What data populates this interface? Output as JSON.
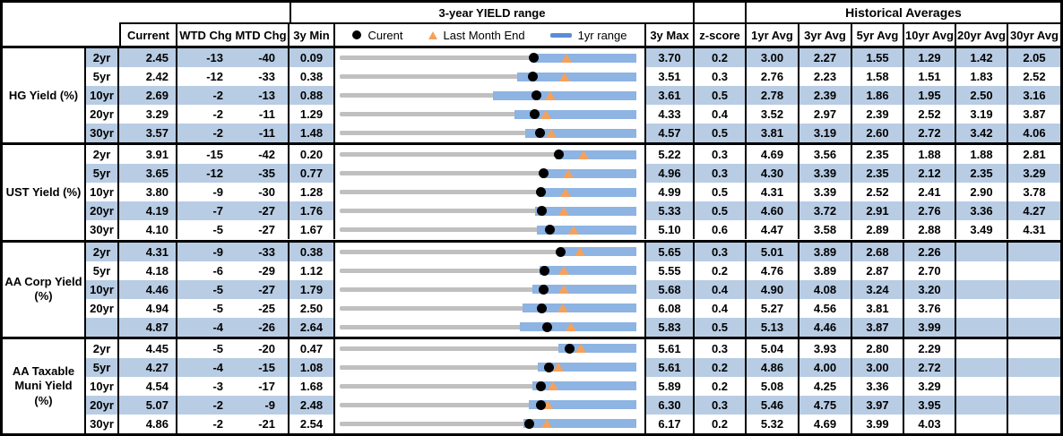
{
  "header": {
    "range_title": "3-year YIELD range",
    "hist_title": "Historical Averages",
    "col_current": "Current",
    "col_wtd": "WTD Chg",
    "col_mtd": "MTD Chg",
    "col_min": "3y Min",
    "col_max": "3y Max",
    "col_z": "z-score",
    "avg_cols": [
      "1yr Avg",
      "3yr Avg",
      "5yr Avg",
      "10yr Avg",
      "20yr Avg",
      "30yr Avg"
    ],
    "legend": {
      "current": "Curent",
      "last_month": "Last Month End",
      "range": "1yr range"
    }
  },
  "colors": {
    "band": "#b8cce4",
    "bar": "#8db4e2",
    "track": "#c0c0c0",
    "triangle": "#f5a15c",
    "dot": "#000000",
    "legend_dash": "#5b8bd5"
  },
  "chart_data": {
    "type": "bullet-range table",
    "title": "3-year YIELD range",
    "legend": [
      "Curent = black dot",
      "Last Month End = orange triangle",
      "1yr range = blue bar"
    ],
    "note": "Each row's gray track spans 3y Min to 3y Max; blue bar spans the 1yr range (yr1_low to yr1_high); dot = current; triangle = last month end.",
    "sections": [
      {
        "label": "HG Yield (%)",
        "rows": [
          {
            "tenor": "2yr",
            "current": "2.45",
            "wtd_chg": "-13",
            "mtd_chg": "-40",
            "min_3y": "0.09",
            "max_3y": "3.70",
            "z_score": "0.2",
            "avgs": [
              "3.00",
              "2.27",
              "1.55",
              "1.29",
              "1.42",
              "2.05"
            ],
            "last_month_end": 2.85,
            "yr1_low": 2.45,
            "yr1_high": 3.7
          },
          {
            "tenor": "5yr",
            "current": "2.42",
            "wtd_chg": "-12",
            "mtd_chg": "-33",
            "min_3y": "0.38",
            "max_3y": "3.51",
            "z_score": "0.3",
            "avgs": [
              "2.76",
              "2.23",
              "1.58",
              "1.51",
              "1.83",
              "2.52"
            ],
            "last_month_end": 2.75,
            "yr1_low": 2.25,
            "yr1_high": 3.51
          },
          {
            "tenor": "10yr",
            "current": "2.69",
            "wtd_chg": "-2",
            "mtd_chg": "-13",
            "min_3y": "0.88",
            "max_3y": "3.61",
            "z_score": "0.5",
            "avgs": [
              "2.78",
              "2.39",
              "1.86",
              "1.95",
              "2.50",
              "3.16"
            ],
            "last_month_end": 2.82,
            "yr1_low": 2.29,
            "yr1_high": 3.61
          },
          {
            "tenor": "20yr",
            "current": "3.29",
            "wtd_chg": "-2",
            "mtd_chg": "-11",
            "min_3y": "1.29",
            "max_3y": "4.33",
            "z_score": "0.4",
            "avgs": [
              "3.52",
              "2.97",
              "2.39",
              "2.52",
              "3.19",
              "3.87"
            ],
            "last_month_end": 3.4,
            "yr1_low": 3.08,
            "yr1_high": 4.33
          },
          {
            "tenor": "30yr",
            "current": "3.57",
            "wtd_chg": "-2",
            "mtd_chg": "-11",
            "min_3y": "1.48",
            "max_3y": "4.57",
            "z_score": "0.5",
            "avgs": [
              "3.81",
              "3.19",
              "2.60",
              "2.72",
              "3.42",
              "4.06"
            ],
            "last_month_end": 3.68,
            "yr1_low": 3.41,
            "yr1_high": 4.57
          }
        ]
      },
      {
        "label": "UST Yield (%)",
        "rows": [
          {
            "tenor": "2yr",
            "current": "3.91",
            "wtd_chg": "-15",
            "mtd_chg": "-42",
            "min_3y": "0.20",
            "max_3y": "5.22",
            "z_score": "0.3",
            "avgs": [
              "4.69",
              "3.56",
              "2.35",
              "1.88",
              "1.88",
              "2.81"
            ],
            "last_month_end": 4.33,
            "yr1_low": 3.85,
            "yr1_high": 5.22
          },
          {
            "tenor": "5yr",
            "current": "3.65",
            "wtd_chg": "-12",
            "mtd_chg": "-35",
            "min_3y": "0.77",
            "max_3y": "4.96",
            "z_score": "0.3",
            "avgs": [
              "4.30",
              "3.39",
              "2.35",
              "2.12",
              "2.35",
              "3.29"
            ],
            "last_month_end": 4.0,
            "yr1_low": 3.62,
            "yr1_high": 4.96
          },
          {
            "tenor": "10yr",
            "current": "3.80",
            "wtd_chg": "-9",
            "mtd_chg": "-30",
            "min_3y": "1.28",
            "max_3y": "4.99",
            "z_score": "0.5",
            "avgs": [
              "4.31",
              "3.39",
              "2.52",
              "2.41",
              "2.90",
              "3.78"
            ],
            "last_month_end": 4.1,
            "yr1_low": 3.77,
            "yr1_high": 4.99
          },
          {
            "tenor": "20yr",
            "current": "4.19",
            "wtd_chg": "-7",
            "mtd_chg": "-27",
            "min_3y": "1.76",
            "max_3y": "5.33",
            "z_score": "0.5",
            "avgs": [
              "4.60",
              "3.72",
              "2.91",
              "2.76",
              "3.36",
              "4.27"
            ],
            "last_month_end": 4.46,
            "yr1_low": 4.11,
            "yr1_high": 5.33
          },
          {
            "tenor": "30yr",
            "current": "4.10",
            "wtd_chg": "-5",
            "mtd_chg": "-27",
            "min_3y": "1.67",
            "max_3y": "5.10",
            "z_score": "0.6",
            "avgs": [
              "4.47",
              "3.58",
              "2.89",
              "2.88",
              "3.49",
              "4.31"
            ],
            "last_month_end": 4.37,
            "yr1_low": 3.95,
            "yr1_high": 5.1
          }
        ]
      },
      {
        "label": "AA Corp Yield (%)",
        "rows": [
          {
            "tenor": "2yr",
            "current": "4.31",
            "wtd_chg": "-9",
            "mtd_chg": "-33",
            "min_3y": "0.38",
            "max_3y": "5.65",
            "z_score": "0.3",
            "avgs": [
              "5.01",
              "3.89",
              "2.68",
              "2.26",
              "",
              ""
            ],
            "last_month_end": 4.64,
            "yr1_low": 4.31,
            "yr1_high": 5.65
          },
          {
            "tenor": "5yr",
            "current": "4.18",
            "wtd_chg": "-6",
            "mtd_chg": "-29",
            "min_3y": "1.12",
            "max_3y": "5.55",
            "z_score": "0.2",
            "avgs": [
              "4.76",
              "3.89",
              "2.87",
              "2.70",
              "",
              ""
            ],
            "last_month_end": 4.47,
            "yr1_low": 4.1,
            "yr1_high": 5.55
          },
          {
            "tenor": "10yr",
            "current": "4.46",
            "wtd_chg": "-5",
            "mtd_chg": "-27",
            "min_3y": "1.79",
            "max_3y": "5.68",
            "z_score": "0.4",
            "avgs": [
              "4.90",
              "4.08",
              "3.24",
              "3.20",
              "",
              ""
            ],
            "last_month_end": 4.73,
            "yr1_low": 4.32,
            "yr1_high": 5.68
          },
          {
            "tenor": "20yr",
            "current": "4.94",
            "wtd_chg": "-5",
            "mtd_chg": "-25",
            "min_3y": "2.50",
            "max_3y": "6.08",
            "z_score": "0.4",
            "avgs": [
              "5.27",
              "4.56",
              "3.81",
              "3.76",
              "",
              ""
            ],
            "last_month_end": 5.19,
            "yr1_low": 4.71,
            "yr1_high": 6.08
          },
          {
            "tenor": "",
            "current": "4.87",
            "wtd_chg": "-4",
            "mtd_chg": "-26",
            "min_3y": "2.64",
            "max_3y": "5.83",
            "z_score": "0.5",
            "avgs": [
              "5.13",
              "4.46",
              "3.87",
              "3.99",
              "",
              ""
            ],
            "last_month_end": 5.13,
            "yr1_low": 4.58,
            "yr1_high": 5.83
          }
        ]
      },
      {
        "label": "AA Taxable Muni Yield (%)",
        "rows": [
          {
            "tenor": "2yr",
            "current": "4.45",
            "wtd_chg": "-5",
            "mtd_chg": "-20",
            "min_3y": "0.47",
            "max_3y": "5.61",
            "z_score": "0.3",
            "avgs": [
              "5.04",
              "3.93",
              "2.80",
              "2.29",
              "",
              ""
            ],
            "last_month_end": 4.65,
            "yr1_low": 4.26,
            "yr1_high": 5.61
          },
          {
            "tenor": "5yr",
            "current": "4.27",
            "wtd_chg": "-4",
            "mtd_chg": "-15",
            "min_3y": "1.08",
            "max_3y": "5.61",
            "z_score": "0.2",
            "avgs": [
              "4.86",
              "4.00",
              "3.00",
              "2.72",
              "",
              ""
            ],
            "last_month_end": 4.42,
            "yr1_low": 4.11,
            "yr1_high": 5.61
          },
          {
            "tenor": "10yr",
            "current": "4.54",
            "wtd_chg": "-3",
            "mtd_chg": "-17",
            "min_3y": "1.68",
            "max_3y": "5.89",
            "z_score": "0.2",
            "avgs": [
              "5.08",
              "4.25",
              "3.36",
              "3.29",
              "",
              ""
            ],
            "last_month_end": 4.71,
            "yr1_low": 4.42,
            "yr1_high": 5.89
          },
          {
            "tenor": "20yr",
            "current": "5.07",
            "wtd_chg": "-2",
            "mtd_chg": "-9",
            "min_3y": "2.48",
            "max_3y": "6.30",
            "z_score": "0.3",
            "avgs": [
              "5.46",
              "4.75",
              "3.97",
              "3.95",
              "",
              ""
            ],
            "last_month_end": 5.16,
            "yr1_low": 4.91,
            "yr1_high": 6.3
          },
          {
            "tenor": "30yr",
            "current": "4.86",
            "wtd_chg": "-2",
            "mtd_chg": "-21",
            "min_3y": "2.54",
            "max_3y": "6.17",
            "z_score": "0.2",
            "avgs": [
              "5.32",
              "4.69",
              "3.99",
              "4.03",
              "",
              ""
            ],
            "last_month_end": 5.07,
            "yr1_low": 4.79,
            "yr1_high": 6.17
          }
        ]
      }
    ]
  }
}
